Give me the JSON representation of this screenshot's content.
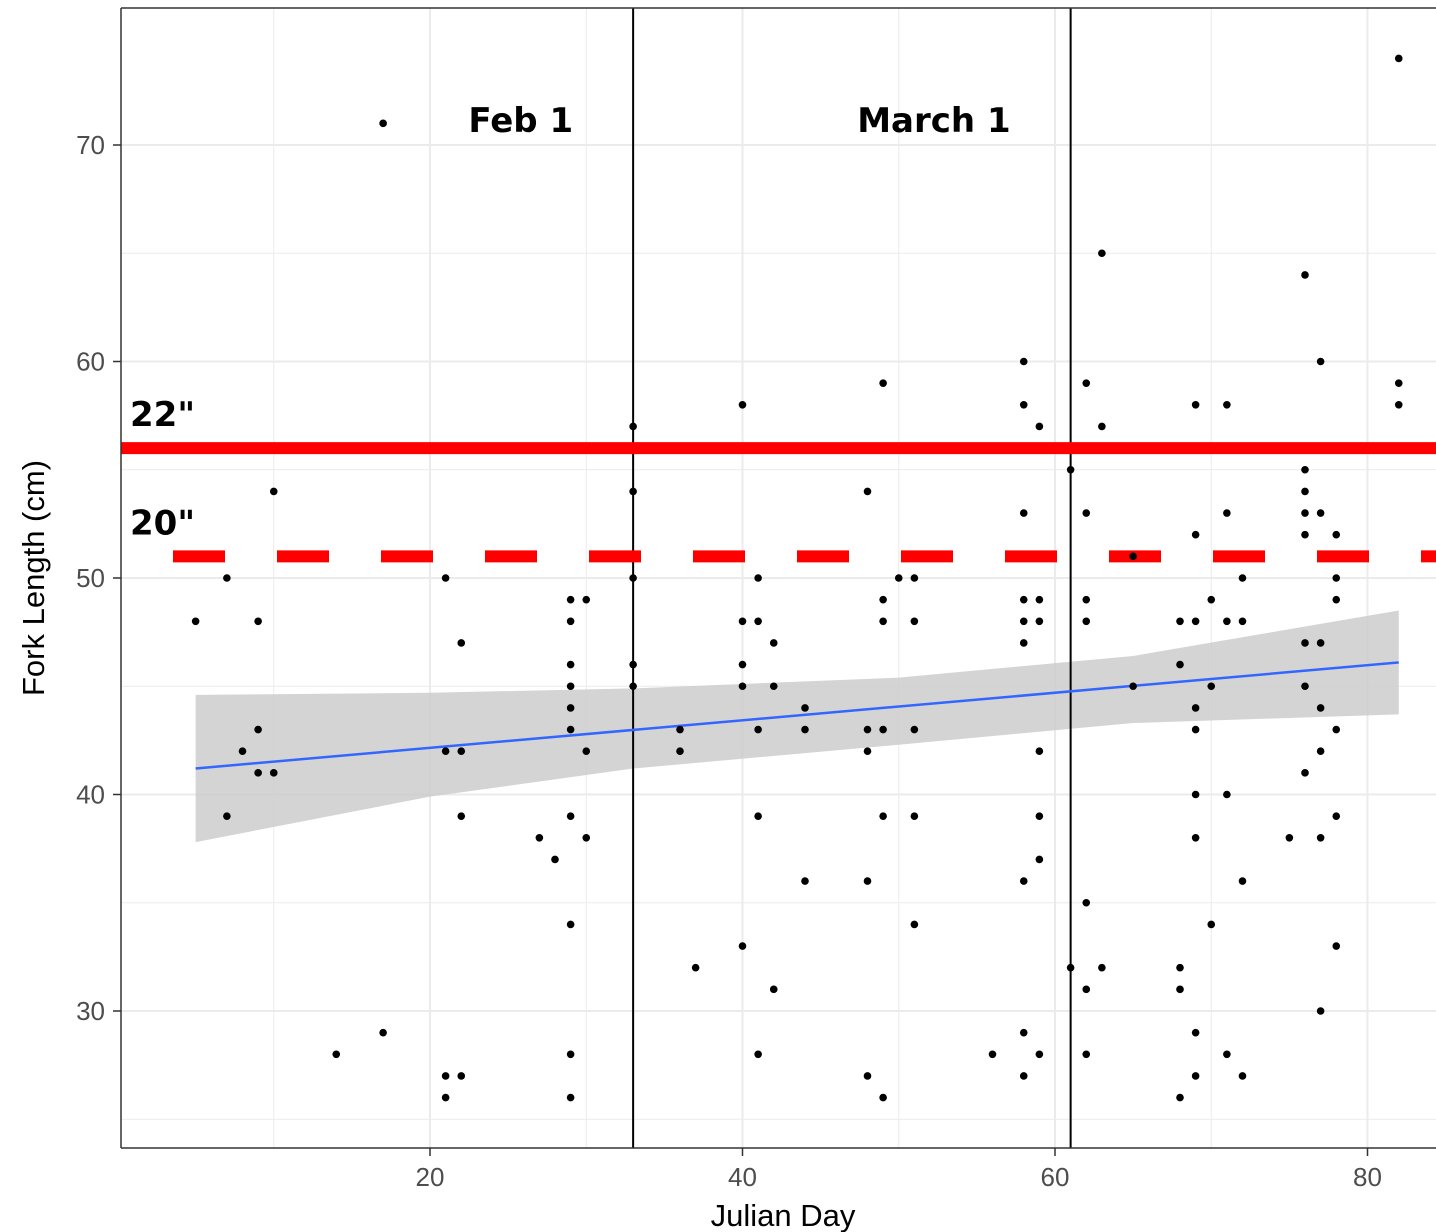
{
  "chart_data": {
    "type": "scatter",
    "title": "",
    "xlabel": "Julian Day",
    "ylabel": "Fork Length (cm)",
    "xlim": [
      1,
      84
    ],
    "ylim": [
      24,
      74.5
    ],
    "x_ticks": [
      20,
      40,
      60,
      80
    ],
    "y_ticks": [
      30,
      40,
      50,
      60,
      70
    ],
    "grid": true,
    "legend": "none",
    "points": [
      [
        5,
        48
      ],
      [
        7,
        50
      ],
      [
        7,
        39
      ],
      [
        8,
        42
      ],
      [
        9,
        48
      ],
      [
        9,
        43
      ],
      [
        9,
        41
      ],
      [
        10,
        54
      ],
      [
        10,
        41
      ],
      [
        14,
        28
      ],
      [
        17,
        71
      ],
      [
        17,
        29
      ],
      [
        21,
        50
      ],
      [
        21,
        42
      ],
      [
        21,
        27
      ],
      [
        21,
        26
      ],
      [
        22,
        47
      ],
      [
        22,
        42
      ],
      [
        22,
        39
      ],
      [
        22,
        27
      ],
      [
        27,
        38
      ],
      [
        28,
        37
      ],
      [
        29,
        49
      ],
      [
        29,
        48
      ],
      [
        29,
        46
      ],
      [
        29,
        45
      ],
      [
        29,
        44
      ],
      [
        29,
        43
      ],
      [
        29,
        39
      ],
      [
        29,
        34
      ],
      [
        29,
        28
      ],
      [
        29,
        26
      ],
      [
        30,
        49
      ],
      [
        30,
        42
      ],
      [
        30,
        38
      ],
      [
        33,
        57
      ],
      [
        33,
        54
      ],
      [
        33,
        50
      ],
      [
        33,
        46
      ],
      [
        33,
        45
      ],
      [
        36,
        43
      ],
      [
        36,
        42
      ],
      [
        37,
        32
      ],
      [
        40,
        58
      ],
      [
        40,
        48
      ],
      [
        40,
        46
      ],
      [
        40,
        45
      ],
      [
        40,
        33
      ],
      [
        41,
        50
      ],
      [
        41,
        48
      ],
      [
        41,
        43
      ],
      [
        41,
        39
      ],
      [
        41,
        28
      ],
      [
        42,
        47
      ],
      [
        42,
        45
      ],
      [
        42,
        31
      ],
      [
        44,
        44
      ],
      [
        44,
        43
      ],
      [
        44,
        36
      ],
      [
        48,
        54
      ],
      [
        48,
        43
      ],
      [
        48,
        42
      ],
      [
        48,
        36
      ],
      [
        48,
        27
      ],
      [
        49,
        59
      ],
      [
        49,
        49
      ],
      [
        49,
        48
      ],
      [
        49,
        43
      ],
      [
        49,
        39
      ],
      [
        49,
        26
      ],
      [
        50,
        50
      ],
      [
        51,
        50
      ],
      [
        51,
        48
      ],
      [
        51,
        43
      ],
      [
        51,
        39
      ],
      [
        51,
        34
      ],
      [
        56,
        28
      ],
      [
        58,
        60
      ],
      [
        58,
        58
      ],
      [
        58,
        53
      ],
      [
        58,
        49
      ],
      [
        58,
        48
      ],
      [
        58,
        47
      ],
      [
        58,
        36
      ],
      [
        58,
        29
      ],
      [
        58,
        27
      ],
      [
        59,
        57
      ],
      [
        59,
        49
      ],
      [
        59,
        48
      ],
      [
        59,
        42
      ],
      [
        59,
        39
      ],
      [
        59,
        37
      ],
      [
        59,
        28
      ],
      [
        61,
        55
      ],
      [
        61,
        32
      ],
      [
        62,
        59
      ],
      [
        62,
        53
      ],
      [
        62,
        49
      ],
      [
        62,
        48
      ],
      [
        62,
        35
      ],
      [
        62,
        31
      ],
      [
        62,
        28
      ],
      [
        63,
        65
      ],
      [
        63,
        57
      ],
      [
        63,
        32
      ],
      [
        65,
        51
      ],
      [
        65,
        45
      ],
      [
        68,
        48
      ],
      [
        68,
        46
      ],
      [
        68,
        32
      ],
      [
        68,
        31
      ],
      [
        68,
        26
      ],
      [
        69,
        58
      ],
      [
        69,
        52
      ],
      [
        69,
        48
      ],
      [
        69,
        44
      ],
      [
        69,
        43
      ],
      [
        69,
        40
      ],
      [
        69,
        38
      ],
      [
        69,
        29
      ],
      [
        69,
        27
      ],
      [
        70,
        49
      ],
      [
        70,
        45
      ],
      [
        70,
        34
      ],
      [
        71,
        58
      ],
      [
        71,
        53
      ],
      [
        71,
        48
      ],
      [
        71,
        40
      ],
      [
        71,
        28
      ],
      [
        72,
        50
      ],
      [
        72,
        48
      ],
      [
        72,
        36
      ],
      [
        72,
        27
      ],
      [
        75,
        38
      ],
      [
        76,
        64
      ],
      [
        76,
        55
      ],
      [
        76,
        54
      ],
      [
        76,
        53
      ],
      [
        76,
        52
      ],
      [
        76,
        47
      ],
      [
        76,
        45
      ],
      [
        76,
        41
      ],
      [
        77,
        60
      ],
      [
        77,
        53
      ],
      [
        77,
        47
      ],
      [
        77,
        44
      ],
      [
        77,
        42
      ],
      [
        77,
        38
      ],
      [
        77,
        30
      ],
      [
        78,
        52
      ],
      [
        78,
        50
      ],
      [
        78,
        49
      ],
      [
        78,
        43
      ],
      [
        78,
        39
      ],
      [
        78,
        33
      ],
      [
        82,
        74
      ],
      [
        82,
        59
      ],
      [
        82,
        58
      ]
    ],
    "trend_line": {
      "x0": 5,
      "y0": 41.2,
      "x1": 82,
      "y1": 46.1,
      "color": "#3366ff"
    },
    "confidence_band": {
      "x": [
        5,
        20,
        33,
        50,
        65,
        82
      ],
      "lower": [
        37.8,
        39.9,
        41.2,
        42.3,
        43.3,
        43.7
      ],
      "upper": [
        44.6,
        44.7,
        44.9,
        45.4,
        46.4,
        48.5
      ],
      "color": "#cccccc"
    },
    "vertical_lines": [
      {
        "x": 33,
        "label": "Feb 1"
      },
      {
        "x": 61,
        "label": "March 1"
      }
    ],
    "horizontal_lines": [
      {
        "y": 56,
        "label": "22\"",
        "style": "solid",
        "color": "#ff0000"
      },
      {
        "y": 51,
        "label": "20\"",
        "style": "dashed",
        "color": "#ff0000"
      }
    ]
  }
}
